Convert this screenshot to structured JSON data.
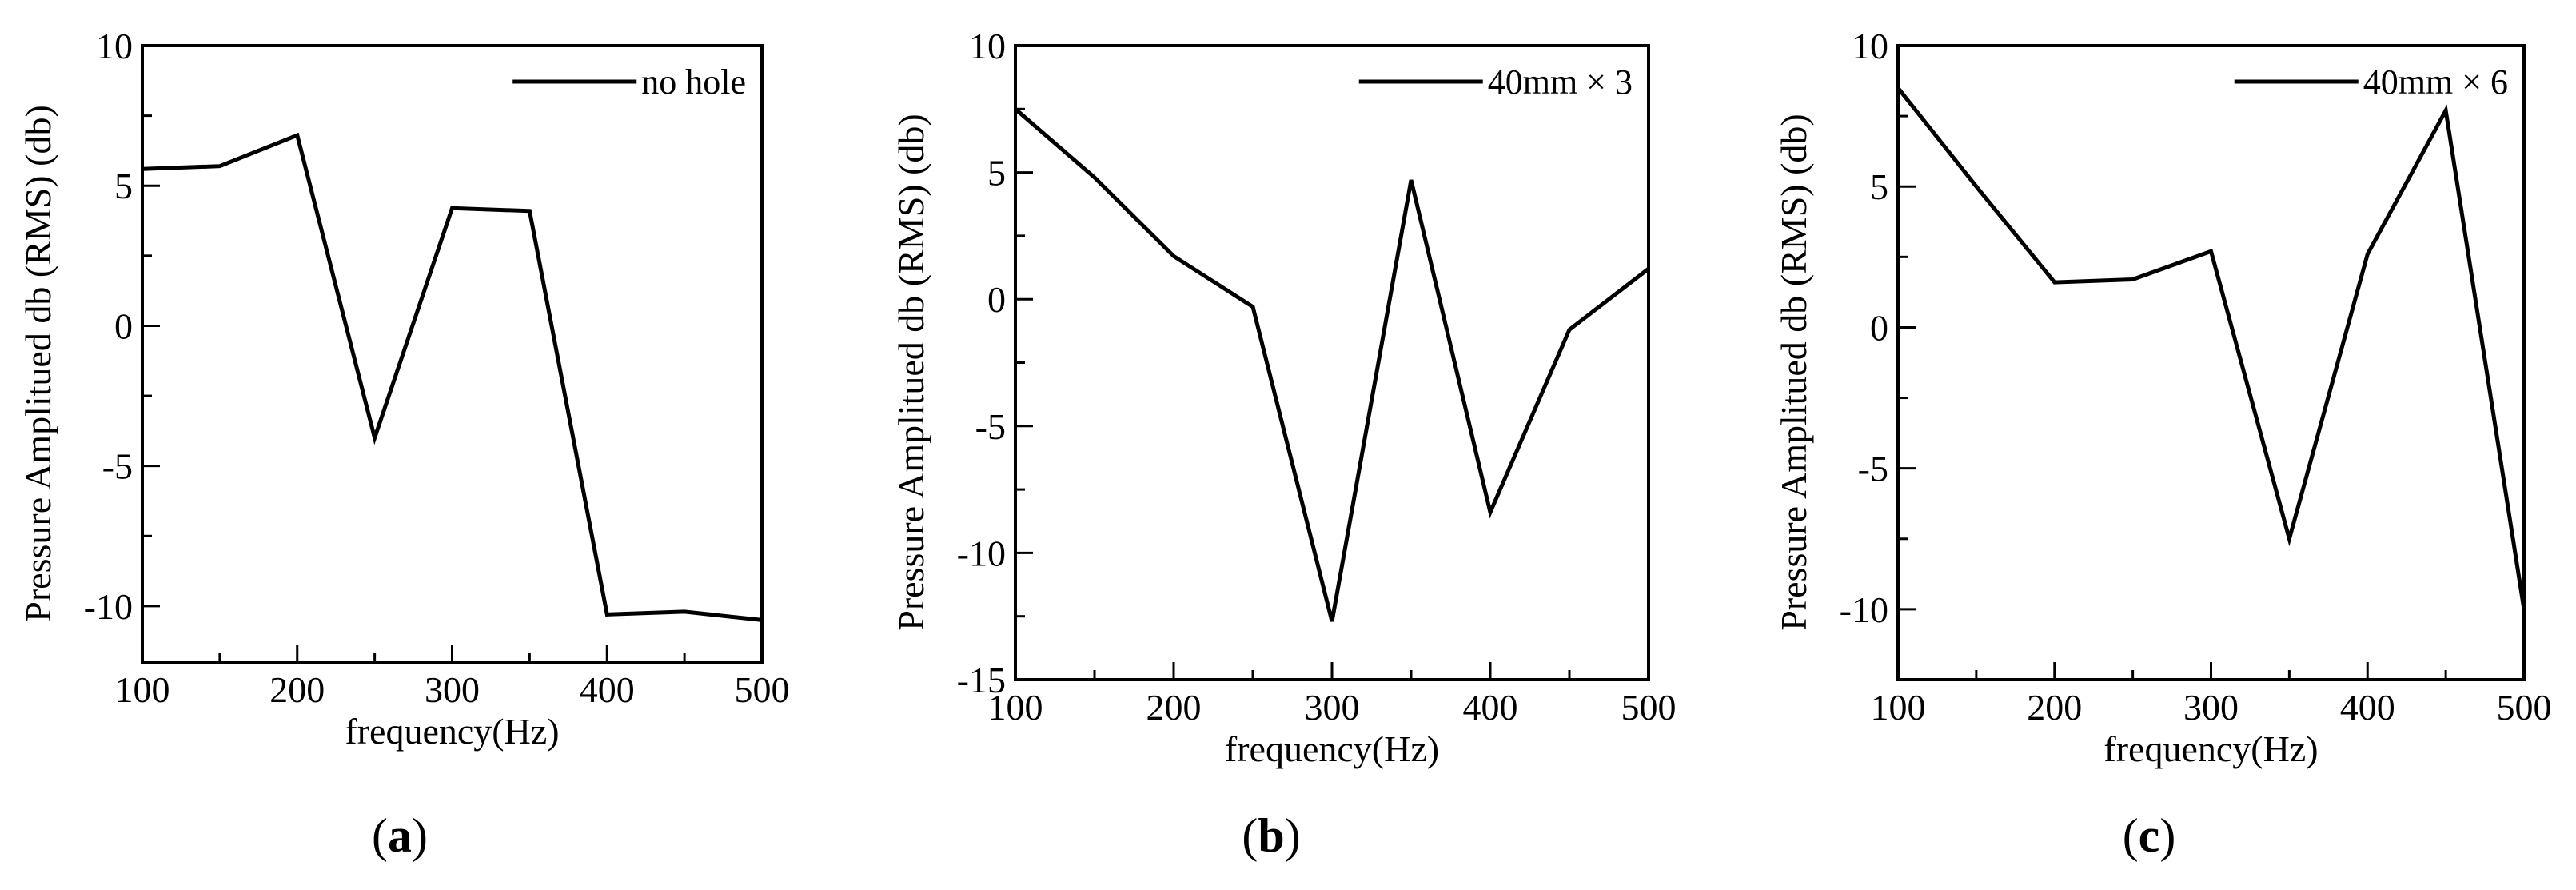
{
  "chart_data": [
    {
      "type": "line",
      "panel_label": "a",
      "xlabel": "frequency(Hz)",
      "ylabel": "Pressure Amplitued db (RMS) (db)",
      "xlim": [
        100,
        500
      ],
      "ylim": [
        -12,
        10
      ],
      "xticks": [
        100,
        200,
        300,
        400,
        500
      ],
      "xtick_labels": [
        "100",
        "200",
        "300",
        "400",
        "500"
      ],
      "yticks": [
        -10,
        -5,
        0,
        5,
        10
      ],
      "ytick_labels": [
        "-10",
        "-5",
        "0",
        "5",
        "10"
      ],
      "legend_position": "top-right",
      "series": [
        {
          "name": "no hole",
          "color": "#000000",
          "x": [
            100,
            150,
            200,
            250,
            300,
            350,
            400,
            450,
            500
          ],
          "y": [
            5.6,
            5.7,
            6.8,
            -4.0,
            4.2,
            4.1,
            -10.3,
            -10.2,
            -10.5
          ]
        }
      ]
    },
    {
      "type": "line",
      "panel_label": "b",
      "xlabel": "frequency(Hz)",
      "ylabel": "Pressure Amplitued db (RMS) (db)",
      "xlim": [
        100,
        500
      ],
      "ylim": [
        -15,
        10
      ],
      "xticks": [
        100,
        200,
        300,
        400,
        500
      ],
      "xtick_labels": [
        "100",
        "200",
        "300",
        "400",
        "500"
      ],
      "yticks": [
        -15,
        -10,
        -5,
        0,
        5,
        10
      ],
      "ytick_labels": [
        "-15",
        "-10",
        "-5",
        "0",
        "5",
        "10"
      ],
      "legend_position": "top-right",
      "series": [
        {
          "name": "40mm × 3",
          "color": "#000000",
          "x": [
            100,
            150,
            200,
            250,
            300,
            350,
            400,
            450,
            500
          ],
          "y": [
            7.5,
            4.8,
            1.7,
            -0.3,
            -12.7,
            4.7,
            -8.4,
            -1.2,
            1.2
          ]
        }
      ]
    },
    {
      "type": "line",
      "panel_label": "c",
      "xlabel": "frequency(Hz)",
      "ylabel": "Pressure Amplitued db (RMS) (db)",
      "xlim": [
        100,
        500
      ],
      "ylim": [
        -12.5,
        10
      ],
      "xticks": [
        100,
        200,
        300,
        400,
        500
      ],
      "xtick_labels": [
        "100",
        "200",
        "300",
        "400",
        "500"
      ],
      "yticks": [
        -10,
        -5,
        0,
        5,
        10
      ],
      "ytick_labels": [
        "-10",
        "-5",
        "0",
        "5",
        "10"
      ],
      "legend_position": "top-right",
      "series": [
        {
          "name": "40mm × 6",
          "color": "#000000",
          "x": [
            100,
            150,
            200,
            250,
            300,
            350,
            400,
            450,
            500
          ],
          "y": [
            8.5,
            5.0,
            1.6,
            1.7,
            2.7,
            -7.5,
            2.6,
            7.7,
            -10.0
          ]
        }
      ]
    }
  ]
}
